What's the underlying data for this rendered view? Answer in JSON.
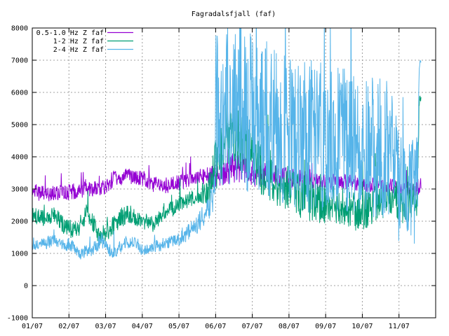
{
  "chart_data": {
    "type": "line",
    "title": "Fagradalsfjall (faf)",
    "xlabel": "",
    "ylabel": "",
    "x_ticks": [
      "01/07",
      "02/07",
      "03/07",
      "04/07",
      "05/07",
      "06/07",
      "07/07",
      "08/07",
      "09/07",
      "10/07",
      "11/07"
    ],
    "xlim": [
      0,
      11
    ],
    "ylim": [
      -1000,
      8000
    ],
    "y_ticks": [
      -1000,
      0,
      1000,
      2000,
      3000,
      4000,
      5000,
      6000,
      7000,
      8000
    ],
    "grid": true,
    "legend_position": "top-left",
    "series": [
      {
        "name": "0.5-1.0 Hz Z faf",
        "color": "#9400d3",
        "x": [
          0,
          0.5,
          1.0,
          1.5,
          2.0,
          2.2,
          2.6,
          3.0,
          3.3,
          3.6,
          4.0,
          4.4,
          4.8,
          5.0,
          5.4,
          5.8,
          6.0,
          6.4,
          6.8,
          7.0,
          7.4,
          7.8,
          8.0,
          8.4,
          8.8,
          9.0,
          9.4,
          9.8,
          10.0,
          10.3,
          10.45,
          10.6
        ],
        "values": [
          2900,
          2850,
          2900,
          3000,
          3050,
          3300,
          3400,
          3350,
          3150,
          3100,
          3200,
          3350,
          3400,
          3400,
          3600,
          3700,
          3500,
          3450,
          3400,
          3350,
          3300,
          3250,
          3250,
          3200,
          3200,
          3150,
          3100,
          3100,
          3000,
          3000,
          3000,
          3150
        ],
        "band": [
          250,
          250,
          250,
          250,
          250,
          250,
          250,
          250,
          250,
          250,
          250,
          250,
          300,
          400,
          500,
          500,
          450,
          350,
          300,
          300,
          300,
          250,
          250,
          250,
          250,
          250,
          250,
          250,
          250,
          250,
          250,
          250
        ]
      },
      {
        "name": "1-2 Hz Z faf",
        "color": "#009e73",
        "x": [
          0,
          0.3,
          0.6,
          0.9,
          1.2,
          1.5,
          1.8,
          2.0,
          2.3,
          2.6,
          3.0,
          3.3,
          3.6,
          4.0,
          4.3,
          4.6,
          4.8,
          4.95,
          5.1,
          5.3,
          5.6,
          6.0,
          6.3,
          6.6,
          7.0,
          7.3,
          7.6,
          8.0,
          8.4,
          8.8,
          9.0,
          9.3,
          9.6,
          9.8,
          10.0,
          10.2,
          10.4,
          10.5,
          10.55,
          10.6
        ],
        "values": [
          2200,
          2100,
          2200,
          1800,
          1700,
          2300,
          1600,
          1600,
          2000,
          2200,
          2000,
          1900,
          2250,
          2500,
          2700,
          2800,
          2900,
          3600,
          4200,
          4400,
          4600,
          4000,
          3500,
          3200,
          3000,
          2800,
          2700,
          2500,
          2500,
          2300,
          2300,
          2500,
          2700,
          2700,
          2500,
          2500,
          2700,
          2700,
          5700,
          5800
        ],
        "band": [
          250,
          250,
          250,
          300,
          300,
          300,
          300,
          300,
          300,
          300,
          250,
          250,
          250,
          250,
          250,
          250,
          400,
          900,
          1000,
          1000,
          1000,
          900,
          800,
          700,
          700,
          700,
          700,
          600,
          600,
          600,
          600,
          600,
          600,
          600,
          600,
          600,
          600,
          600,
          150,
          150
        ]
      },
      {
        "name": "2-4 Hz Z faf",
        "color": "#56b4e9",
        "x": [
          0,
          0.3,
          0.6,
          0.9,
          1.0,
          1.3,
          1.6,
          1.9,
          2.2,
          2.5,
          2.8,
          3.0,
          3.3,
          3.6,
          3.9,
          4.2,
          4.5,
          4.8,
          4.95,
          5.0,
          5.4,
          5.8,
          6.0,
          6.4,
          6.8,
          7.0,
          7.4,
          7.8,
          8.0,
          8.4,
          8.8,
          9.0,
          9.4,
          9.8,
          10.0,
          10.3,
          10.5,
          10.55,
          10.6
        ],
        "values": [
          1300,
          1300,
          1400,
          1200,
          1300,
          1000,
          1100,
          1400,
          1000,
          1300,
          1400,
          1100,
          1200,
          1300,
          1400,
          1600,
          1900,
          2400,
          2800,
          5500,
          5600,
          5500,
          5300,
          5200,
          5000,
          4800,
          4700,
          4600,
          4500,
          4500,
          4400,
          4300,
          4300,
          4200,
          3000,
          3000,
          3000,
          6800,
          6900
        ],
        "band": [
          200,
          200,
          200,
          200,
          200,
          200,
          200,
          250,
          200,
          200,
          200,
          200,
          200,
          200,
          200,
          250,
          300,
          400,
          500,
          2500,
          2600,
          2600,
          2500,
          2500,
          2500,
          2400,
          2400,
          2400,
          2300,
          2300,
          2300,
          2200,
          2200,
          2200,
          1700,
          1700,
          1700,
          150,
          150
        ]
      }
    ]
  }
}
